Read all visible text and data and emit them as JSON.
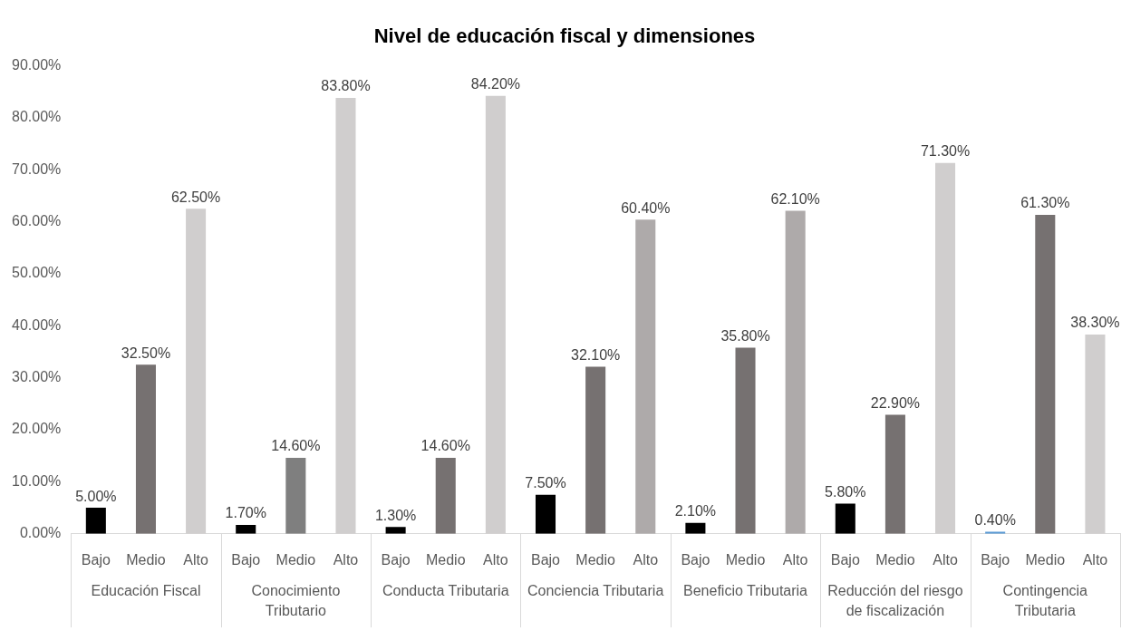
{
  "chart_data": {
    "type": "bar",
    "title": "Nivel de educación fiscal y dimensiones",
    "categories": [
      "Bajo",
      "Medio",
      "Alto",
      "Bajo",
      "Medio",
      "Alto",
      "Bajo",
      "Medio",
      "Alto",
      "Bajo",
      "Medio",
      "Alto",
      "Bajo",
      "Medio",
      "Alto",
      "Bajo",
      "Medio",
      "Alto",
      "Bajo",
      "Medio",
      "Alto"
    ],
    "values": [
      5.0,
      32.5,
      62.5,
      1.7,
      14.6,
      83.8,
      1.3,
      14.6,
      84.2,
      7.5,
      32.1,
      60.4,
      2.1,
      35.8,
      62.1,
      5.8,
      22.9,
      71.3,
      0.4,
      61.3,
      38.3
    ],
    "value_labels": [
      "5.00%",
      "32.50%",
      "62.50%",
      "1.70%",
      "14.60%",
      "83.80%",
      "1.30%",
      "14.60%",
      "84.20%",
      "7.50%",
      "32.10%",
      "60.40%",
      "2.10%",
      "35.80%",
      "62.10%",
      "5.80%",
      "22.90%",
      "71.30%",
      "0.40%",
      "61.30%",
      "38.30%"
    ],
    "colors": [
      "#000000",
      "#767171",
      "#d0cece",
      "#000000",
      "#7f7f7f",
      "#d0cece",
      "#000000",
      "#767171",
      "#d0cece",
      "#000000",
      "#767171",
      "#aeaaaa",
      "#000000",
      "#767171",
      "#aeaaaa",
      "#000000",
      "#767171",
      "#d0cece",
      "#5b9bd5",
      "#767171",
      "#d0cece"
    ],
    "annotations": [
      "Educación Fiscal",
      "Conocimiento Tributario",
      "Conducta Tributaria",
      "Conciencia Tributaria",
      "Beneficio Tributaria",
      "Reducción del riesgo de fiscalización",
      "Contingencia Tributaria"
    ],
    "ylim": [
      0,
      90
    ],
    "yticks": [
      {
        "value": 0,
        "label": "0.00%"
      },
      {
        "value": 10,
        "label": "10.00%"
      },
      {
        "value": 20,
        "label": "20.00%"
      },
      {
        "value": 30,
        "label": "30.00%"
      },
      {
        "value": 40,
        "label": "40.00%"
      },
      {
        "value": 50,
        "label": "50.00%"
      },
      {
        "value": 60,
        "label": "60.00%"
      },
      {
        "value": 70,
        "label": "70.00%"
      },
      {
        "value": 80,
        "label": "80.00%"
      },
      {
        "value": 90,
        "label": "90.00%"
      }
    ],
    "grid": false,
    "legend": false
  }
}
